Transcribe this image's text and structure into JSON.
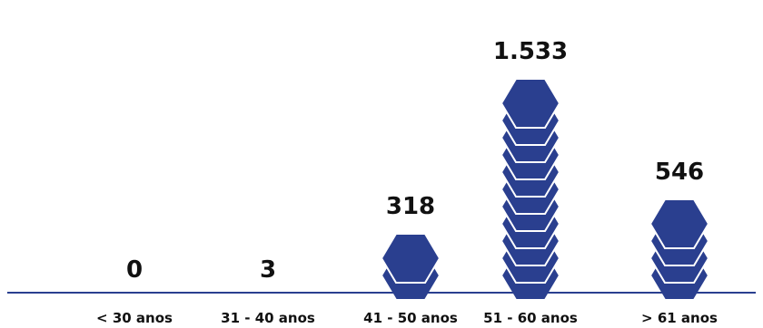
{
  "chart_data": {
    "type": "bar",
    "categories": [
      "< 30 anos",
      "31 - 40 anos",
      "41 - 50 anos",
      "51 - 60 anos",
      "> 61 anos"
    ],
    "values": [
      0,
      3,
      318,
      1533,
      546
    ],
    "value_labels": [
      "0",
      "3",
      "318",
      "1.533",
      "546"
    ],
    "marker": "stacked-hexagon",
    "colors": {
      "hexagon_fill": "#2a3f8f",
      "hexagon_stroke": "#ffffff",
      "baseline": "#2a3f8f",
      "text": "#111111"
    }
  }
}
